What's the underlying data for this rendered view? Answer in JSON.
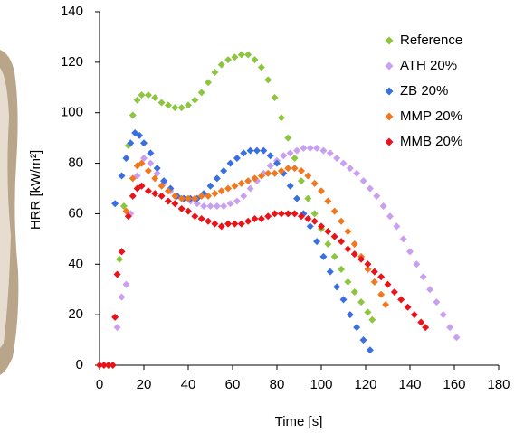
{
  "chart_data": {
    "type": "scatter",
    "x_label": "Time [s]",
    "y_label": "HRR [kW/m²]",
    "xlim": [
      0,
      180
    ],
    "xticks": [
      0,
      20,
      40,
      60,
      80,
      100,
      120,
      140,
      160,
      180
    ],
    "ylim": [
      0,
      140
    ],
    "yticks": [
      0,
      20,
      40,
      60,
      80,
      100,
      120,
      140
    ],
    "legend": "upper-right",
    "series": [
      {
        "name": "Reference",
        "color": "#8cc63f",
        "x": [
          9,
          11,
          13,
          15,
          17,
          19,
          22,
          25,
          28,
          31,
          34,
          37,
          40,
          43,
          46,
          49,
          52,
          55,
          58,
          61,
          64,
          67,
          70,
          73,
          76,
          79,
          82,
          85,
          88,
          91,
          94,
          97,
          100,
          103,
          106,
          109,
          112,
          115,
          118,
          121,
          123
        ],
        "values": [
          42,
          63,
          87,
          99,
          105,
          107,
          107,
          106,
          104,
          103,
          102,
          102,
          103,
          105,
          108,
          112,
          116,
          119,
          121,
          122,
          123,
          123,
          121,
          118,
          113,
          106,
          98,
          90,
          82,
          73,
          66,
          60,
          54,
          48,
          43,
          38,
          33,
          29,
          25,
          21,
          18
        ]
      },
      {
        "name": "ATH 20%",
        "color": "#c9a0f0",
        "x": [
          8,
          10,
          12,
          14,
          17,
          20,
          23,
          26,
          29,
          32,
          35,
          38,
          41,
          44,
          47,
          50,
          53,
          56,
          59,
          62,
          65,
          68,
          71,
          74,
          77,
          80,
          83,
          86,
          89,
          92,
          95,
          98,
          101,
          104,
          107,
          110,
          113,
          116,
          119,
          122,
          125,
          128,
          131,
          134,
          137,
          140,
          143,
          146,
          149,
          152,
          155,
          158,
          161
        ],
        "values": [
          15,
          27,
          32,
          60,
          75,
          82,
          80,
          76,
          72,
          69,
          67,
          66,
          65,
          64,
          63,
          63,
          63,
          63,
          64,
          65,
          67,
          70,
          73,
          76,
          79,
          81,
          83,
          84,
          85,
          86,
          86,
          86,
          85,
          84,
          82,
          80,
          78,
          76,
          73,
          70,
          67,
          63,
          59,
          55,
          50,
          45,
          40,
          35,
          30,
          25,
          20,
          15,
          11
        ]
      },
      {
        "name": "ZB 20%",
        "color": "#3a6fe0",
        "x": [
          7,
          10,
          12,
          14,
          16,
          18,
          20,
          23,
          26,
          29,
          32,
          35,
          38,
          41,
          44,
          47,
          50,
          53,
          56,
          59,
          62,
          65,
          68,
          71,
          74,
          77,
          80,
          83,
          86,
          89,
          92,
          95,
          98,
          101,
          104,
          107,
          110,
          113,
          116,
          119,
          122
        ],
        "values": [
          64,
          75,
          82,
          88,
          92,
          91,
          88,
          84,
          78,
          73,
          70,
          67,
          66,
          66,
          66,
          68,
          71,
          74,
          77,
          80,
          82,
          84,
          85,
          85,
          85,
          83,
          80,
          76,
          71,
          66,
          60,
          55,
          49,
          43,
          37,
          31,
          26,
          20,
          15,
          10,
          6
        ]
      },
      {
        "name": "MMP 20%",
        "color": "#f07820",
        "x": [
          12,
          15,
          17,
          19,
          22,
          25,
          28,
          31,
          34,
          37,
          40,
          43,
          46,
          49,
          52,
          55,
          58,
          61,
          64,
          67,
          70,
          73,
          76,
          79,
          82,
          85,
          88,
          91,
          94,
          97,
          100,
          103,
          106,
          109,
          112,
          115,
          118,
          121,
          124,
          127,
          129
        ],
        "values": [
          61,
          74,
          79,
          80,
          77,
          74,
          71,
          69,
          67,
          66,
          66,
          66,
          67,
          67,
          68,
          69,
          70,
          71,
          72,
          73,
          74,
          75,
          76,
          76,
          77,
          78,
          78,
          77,
          75,
          72,
          69,
          65,
          61,
          57,
          53,
          48,
          43,
          38,
          33,
          28,
          24
        ]
      },
      {
        "name": "MMB 20%",
        "color": "#e8141a",
        "x": [
          0,
          2,
          4,
          6,
          7,
          8,
          10,
          13,
          15,
          17,
          19,
          22,
          25,
          28,
          31,
          34,
          37,
          40,
          43,
          46,
          49,
          52,
          55,
          58,
          61,
          64,
          67,
          70,
          73,
          76,
          79,
          82,
          85,
          88,
          91,
          94,
          97,
          100,
          103,
          106,
          109,
          112,
          115,
          118,
          121,
          124,
          127,
          130,
          133,
          136,
          139,
          142,
          145,
          147
        ],
        "values": [
          0,
          0,
          0,
          0,
          19,
          36,
          45,
          59,
          67,
          70,
          71,
          69,
          68,
          67,
          65,
          64,
          62,
          61,
          59,
          58,
          57,
          56,
          55,
          56,
          56,
          56,
          57,
          58,
          58,
          59,
          60,
          60,
          60,
          60,
          59,
          58,
          57,
          55,
          53,
          51,
          49,
          46,
          44,
          42,
          40,
          37,
          35,
          32,
          29,
          26,
          23,
          20,
          17,
          15
        ]
      }
    ]
  }
}
